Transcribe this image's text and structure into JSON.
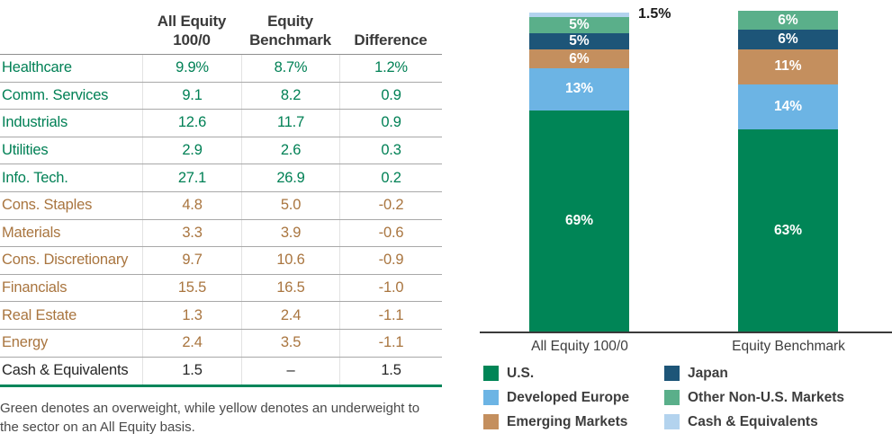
{
  "colors": {
    "overweight_text": "#008055",
    "underweight_text": "#a9753f",
    "neutral_text": "#262626",
    "table_bottom_rule": "#00855a",
    "axis_line": "#3a3a3a"
  },
  "table": {
    "header": [
      {
        "line1": "All Equity",
        "line2": "100/0"
      },
      {
        "line1": "Equity",
        "line2": "Benchmark"
      },
      {
        "line1": "",
        "line2": "Difference"
      }
    ],
    "rows": [
      {
        "label": "Healthcare",
        "all_equity": "9.9%",
        "benchmark": "8.7%",
        "difference": "1.2%",
        "tone": "overweight"
      },
      {
        "label": "Comm. Services",
        "all_equity": "9.1",
        "benchmark": "8.2",
        "difference": "0.9",
        "tone": "overweight"
      },
      {
        "label": "Industrials",
        "all_equity": "12.6",
        "benchmark": "11.7",
        "difference": "0.9",
        "tone": "overweight"
      },
      {
        "label": "Utilities",
        "all_equity": "2.9",
        "benchmark": "2.6",
        "difference": "0.3",
        "tone": "overweight"
      },
      {
        "label": "Info. Tech.",
        "all_equity": "27.1",
        "benchmark": "26.9",
        "difference": "0.2",
        "tone": "overweight"
      },
      {
        "label": "Cons. Staples",
        "all_equity": "4.8",
        "benchmark": "5.0",
        "difference": "-0.2",
        "tone": "underweight"
      },
      {
        "label": "Materials",
        "all_equity": "3.3",
        "benchmark": "3.9",
        "difference": "-0.6",
        "tone": "underweight"
      },
      {
        "label": "Cons. Discretionary",
        "all_equity": "9.7",
        "benchmark": "10.6",
        "difference": "-0.9",
        "tone": "underweight"
      },
      {
        "label": "Financials",
        "all_equity": "15.5",
        "benchmark": "16.5",
        "difference": "-1.0",
        "tone": "underweight"
      },
      {
        "label": "Real Estate",
        "all_equity": "1.3",
        "benchmark": "2.4",
        "difference": "-1.1",
        "tone": "underweight"
      },
      {
        "label": "Energy",
        "all_equity": "2.4",
        "benchmark": "3.5",
        "difference": "-1.1",
        "tone": "underweight"
      },
      {
        "label": "Cash & Equivalents",
        "all_equity": "1.5",
        "benchmark": "–",
        "difference": "1.5",
        "tone": "neutral"
      }
    ],
    "footnote": "Green denotes an overweight, while yellow denotes an underweight to the sector on an All Equity basis."
  },
  "chart_data": {
    "type": "bar",
    "stacked": true,
    "orientation": "vertical",
    "unit": "%",
    "ylim": [
      0,
      100
    ],
    "grid": false,
    "categories": [
      "All Equity 100/0",
      "Equity Benchmark"
    ],
    "series": [
      {
        "name": "U.S.",
        "color": "#008556",
        "values": [
          69,
          63
        ]
      },
      {
        "name": "Developed Europe",
        "color": "#6cb4e4",
        "values": [
          13,
          14
        ]
      },
      {
        "name": "Emerging Markets",
        "color": "#c48f5e",
        "values": [
          6,
          11
        ]
      },
      {
        "name": "Japan",
        "color": "#1d5578",
        "values": [
          5,
          6
        ]
      },
      {
        "name": "Other Non-U.S. Markets",
        "color": "#5aaf8a",
        "values": [
          5,
          6
        ]
      },
      {
        "name": "Cash & Equivalents",
        "color": "#b3d3ee",
        "values": [
          1.5,
          0
        ]
      }
    ],
    "data_labels": {
      "all_equity": [
        "69%",
        "13%",
        "6%",
        "5%",
        "5%",
        "1.5%"
      ],
      "equity_benchmark": [
        "63%",
        "14%",
        "11%",
        "6%",
        "6%",
        ""
      ]
    },
    "legend": {
      "position": "bottom",
      "columns": [
        [
          "U.S.",
          "Developed Europe",
          "Emerging Markets"
        ],
        [
          "Japan",
          "Other Non-U.S. Markets",
          "Cash & Equivalents"
        ]
      ]
    }
  }
}
